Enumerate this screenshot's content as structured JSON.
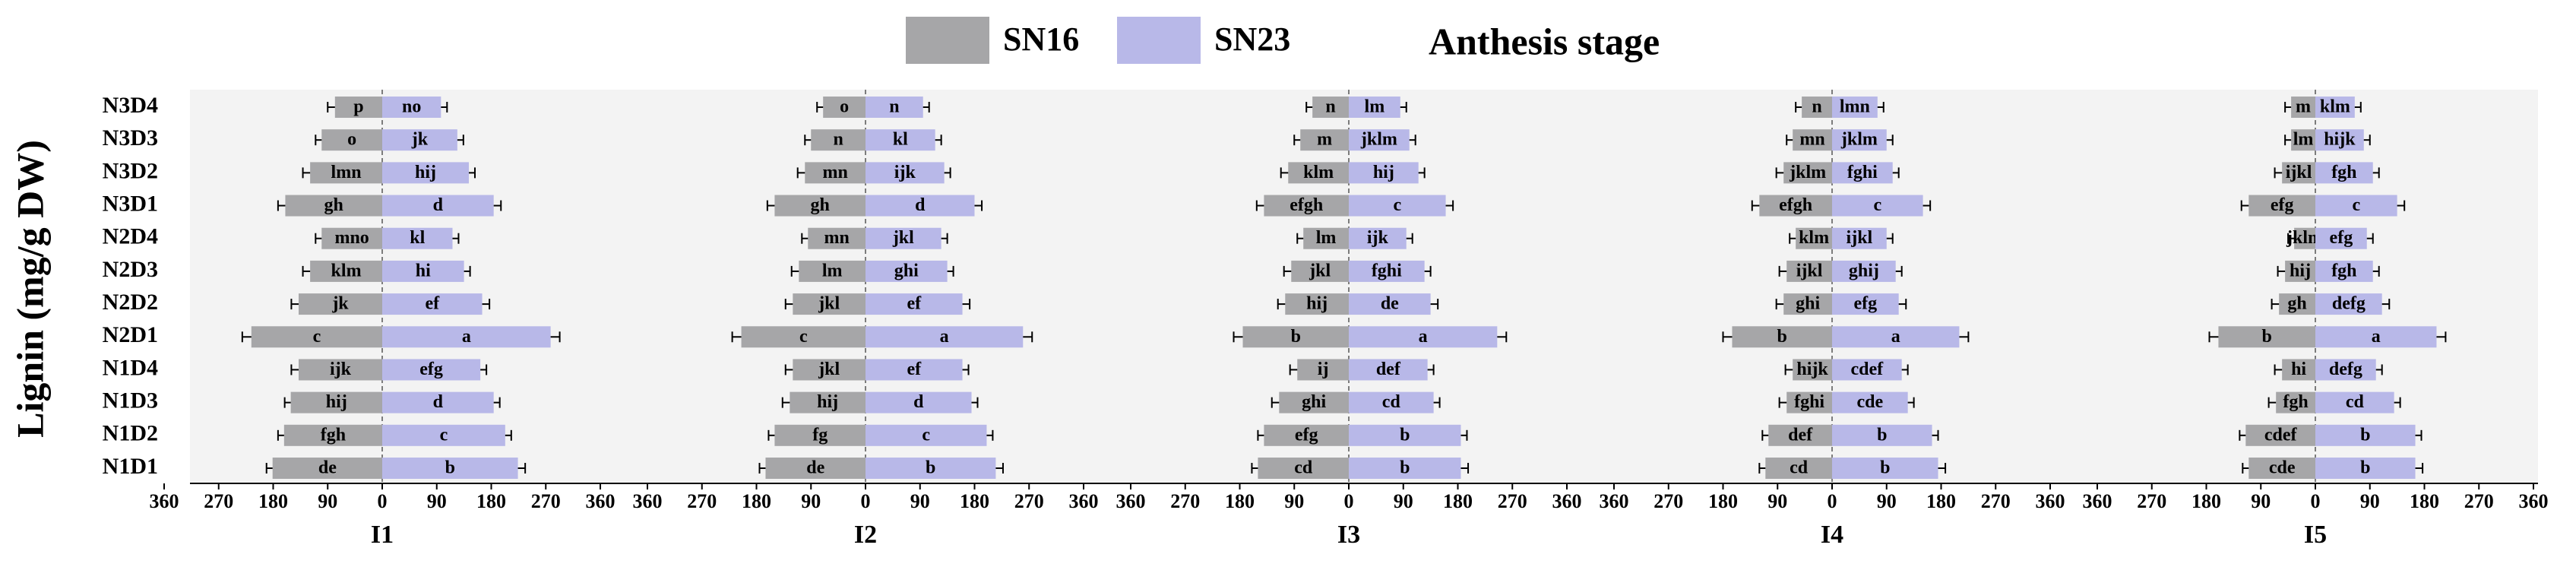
{
  "chart_data": {
    "type": "bar",
    "orientation": "horizontal",
    "title": "Anthesis stage",
    "ylabel": "Lignin (mg/g DW)",
    "categories": [
      "N3D4",
      "N3D3",
      "N3D2",
      "N3D1",
      "N2D4",
      "N2D3",
      "N2D2",
      "N2D1",
      "N1D4",
      "N1D3",
      "N1D2",
      "N1D1"
    ],
    "xlim": [
      -360,
      360
    ],
    "xticks": [
      {
        "value": -360,
        "label": "360"
      },
      {
        "value": -270,
        "label": "270"
      },
      {
        "value": -180,
        "label": "180"
      },
      {
        "value": -90,
        "label": "90"
      },
      0,
      90,
      180,
      270,
      360
    ],
    "series": [
      {
        "name": "SN16",
        "color": "#a6a6a8"
      },
      {
        "name": "SN23",
        "color": "#b8b8e8"
      }
    ],
    "panels": [
      {
        "label": "I1",
        "series": [
          {
            "values": [
              -78,
              -100,
              -119,
              -160,
              -100,
              -119,
              -138,
              -216,
              -138,
              -151,
              -162,
              -181
            ],
            "errors": [
              12,
              10,
              12,
              12,
              10,
              12,
              12,
              15,
              12,
              10,
              10,
              10
            ],
            "letters": [
              "p",
              "o",
              "lmn",
              "gh",
              "mno",
              "klm",
              "jk",
              "c",
              "ijk",
              "hij",
              "fgh",
              "de"
            ]
          },
          {
            "values": [
              97,
              124,
              143,
              184,
              116,
              135,
              165,
              278,
              162,
              184,
              203,
              224
            ],
            "errors": [
              10,
              10,
              10,
              12,
              10,
              10,
              12,
              15,
              10,
              10,
              10,
              12
            ],
            "letters": [
              "no",
              "jk",
              "hij",
              "d",
              "kl",
              "hi",
              "ef",
              "a",
              "efg",
              "d",
              "c",
              "b"
            ]
          }
        ]
      },
      {
        "label": "I2",
        "series": [
          {
            "values": [
              -70,
              -90,
              -100,
              -150,
              -95,
              -110,
              -120,
              -205,
              -120,
              -125,
              -150,
              -165
            ],
            "errors": [
              10,
              10,
              12,
              12,
              10,
              12,
              12,
              15,
              12,
              12,
              10,
              10
            ],
            "letters": [
              "o",
              "n",
              "mn",
              "gh",
              "mn",
              "lm",
              "jkl",
              "c",
              "jkl",
              "hij",
              "fg",
              "de"
            ]
          },
          {
            "values": [
              95,
              115,
              130,
              180,
              125,
              135,
              160,
              260,
              160,
              175,
              200,
              215
            ],
            "errors": [
              10,
              10,
              10,
              12,
              10,
              10,
              12,
              15,
              10,
              10,
              10,
              12
            ],
            "letters": [
              "n",
              "kl",
              "ijk",
              "d",
              "jkl",
              "ghi",
              "ef",
              "a",
              "ef",
              "d",
              "c",
              "b"
            ]
          }
        ]
      },
      {
        "label": "I3",
        "series": [
          {
            "values": [
              -60,
              -80,
              -100,
              -140,
              -75,
              -95,
              -105,
              -175,
              -85,
              -115,
              -140,
              -150
            ],
            "errors": [
              10,
              10,
              12,
              12,
              10,
              12,
              12,
              15,
              12,
              12,
              10,
              10
            ],
            "letters": [
              "n",
              "m",
              "klm",
              "efgh",
              "lm",
              "jkl",
              "hij",
              "b",
              "ij",
              "ghi",
              "efg",
              "cd"
            ]
          },
          {
            "values": [
              85,
              100,
              115,
              160,
              95,
              125,
              135,
              245,
              130,
              140,
              185,
              185
            ],
            "errors": [
              10,
              10,
              10,
              12,
              10,
              10,
              12,
              15,
              10,
              10,
              10,
              12
            ],
            "letters": [
              "lm",
              "jklm",
              "hij",
              "c",
              "ijk",
              "fghi",
              "de",
              "a",
              "def",
              "cd",
              "b",
              "b"
            ]
          }
        ]
      },
      {
        "label": "I4",
        "series": [
          {
            "values": [
              -50,
              -65,
              -80,
              -120,
              -60,
              -75,
              -80,
              -165,
              -65,
              -75,
              -105,
              -110
            ],
            "errors": [
              10,
              10,
              12,
              12,
              10,
              12,
              12,
              15,
              12,
              12,
              10,
              10
            ],
            "letters": [
              "n",
              "mn",
              "jklm",
              "efgh",
              "klm",
              "ijkl",
              "ghi",
              "b",
              "hijk",
              "fghi",
              "def",
              "cd"
            ]
          },
          {
            "values": [
              75,
              90,
              100,
              150,
              90,
              105,
              110,
              210,
              115,
              125,
              165,
              175
            ],
            "errors": [
              10,
              10,
              10,
              12,
              10,
              10,
              12,
              15,
              10,
              10,
              10,
              12
            ],
            "letters": [
              "lmn",
              "jklm",
              "fghi",
              "c",
              "ijkl",
              "ghij",
              "efg",
              "a",
              "cdef",
              "cde",
              "b",
              "b"
            ]
          }
        ]
      },
      {
        "label": "I5",
        "series": [
          {
            "values": [
              -40,
              -40,
              -55,
              -110,
              -35,
              -50,
              -60,
              -160,
              -55,
              -65,
              -115,
              -110
            ],
            "errors": [
              10,
              10,
              12,
              12,
              10,
              12,
              12,
              15,
              12,
              12,
              10,
              10
            ],
            "letters": [
              "m",
              "lm",
              "ijkl",
              "efg",
              "jklm",
              "hij",
              "gh",
              "b",
              "hi",
              "fgh",
              "cdef",
              "cde"
            ]
          },
          {
            "values": [
              65,
              80,
              95,
              135,
              85,
              95,
              110,
              200,
              100,
              130,
              165,
              165
            ],
            "errors": [
              10,
              10,
              10,
              12,
              10,
              10,
              12,
              15,
              10,
              10,
              10,
              12
            ],
            "letters": [
              "klm",
              "hijk",
              "fgh",
              "c",
              "efg",
              "fgh",
              "defg",
              "a",
              "defg",
              "cd",
              "b",
              "b"
            ]
          }
        ]
      }
    ]
  }
}
